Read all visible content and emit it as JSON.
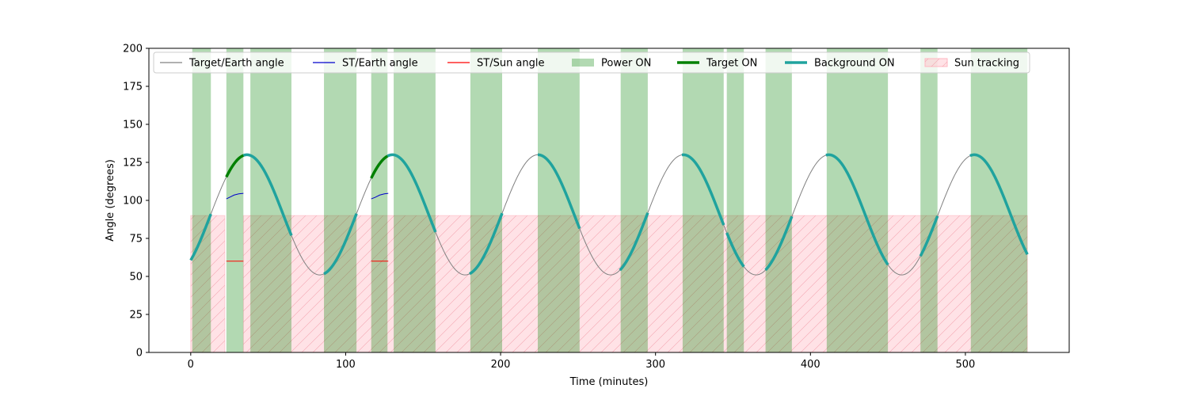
{
  "chart_data": {
    "type": "line",
    "title": "",
    "xlabel": "Time (minutes)",
    "ylabel": "Angle (degrees)",
    "xlim": [
      -27,
      567
    ],
    "ylim": [
      0,
      200
    ],
    "xticks": [
      0,
      100,
      200,
      300,
      400,
      500
    ],
    "yticks": [
      0,
      25,
      50,
      75,
      100,
      125,
      150,
      175,
      200
    ],
    "grid": false,
    "legend_position": "top",
    "target_earth_model": {
      "mean": 90.5,
      "amplitude": 39.5,
      "period_min": 93.9,
      "phase_min": 12.8
    },
    "series": [
      {
        "name": "Target/Earth angle",
        "color": "#808080",
        "style": "thin-line",
        "range": [
          0,
          540
        ]
      },
      {
        "name": "ST/Earth angle",
        "color": "#0000cc",
        "style": "thin-line",
        "segments": [
          [
            [
              23,
              101
            ],
            [
              25,
              102
            ],
            [
              28,
              103.5
            ],
            [
              31,
              104.3
            ],
            [
              34,
              104.6
            ]
          ],
          [
            [
              116.5,
              101
            ],
            [
              119,
              102
            ],
            [
              122,
              103.5
            ],
            [
              125,
              104.3
            ],
            [
              127.5,
              104.6
            ]
          ]
        ]
      },
      {
        "name": "ST/Sun angle",
        "color": "#ff0000",
        "style": "thin-line",
        "segments": [
          [
            [
              23,
              60
            ],
            [
              34,
              60
            ]
          ],
          [
            [
              116.5,
              60
            ],
            [
              127.5,
              60
            ]
          ]
        ]
      },
      {
        "name": "Power ON",
        "color": "#008000",
        "style": "span",
        "y_range": [
          0,
          200
        ],
        "intervals": [
          [
            1,
            13
          ],
          [
            23,
            34
          ],
          [
            38.5,
            65
          ],
          [
            86,
            107
          ],
          [
            116.5,
            127
          ],
          [
            131,
            158
          ],
          [
            180.5,
            201
          ],
          [
            224,
            251
          ],
          [
            277.5,
            295
          ],
          [
            317.5,
            344
          ],
          [
            346,
            357
          ],
          [
            371,
            388
          ],
          [
            410.5,
            450
          ],
          [
            471,
            482
          ],
          [
            503.5,
            540
          ]
        ]
      },
      {
        "name": "Target ON",
        "color": "#008000",
        "style": "thick-line",
        "intervals": [
          [
            23,
            34
          ],
          [
            116.5,
            127
          ]
        ]
      },
      {
        "name": "Background ON",
        "color": "#20a39e",
        "style": "thick-line",
        "intervals": [
          [
            0,
            13
          ],
          [
            34,
            65
          ],
          [
            86,
            107
          ],
          [
            127,
            158
          ],
          [
            180,
            201
          ],
          [
            224,
            251
          ],
          [
            277,
            295
          ],
          [
            317,
            344
          ],
          [
            346,
            357
          ],
          [
            371,
            388
          ],
          [
            410,
            450
          ],
          [
            471,
            482
          ],
          [
            503,
            540
          ]
        ]
      },
      {
        "name": "Sun tracking",
        "color": "#ffb6c1",
        "style": "hatched-span",
        "y_range": [
          0,
          90
        ],
        "intervals": [
          [
            0,
            22
          ],
          [
            34,
            540
          ]
        ]
      }
    ]
  }
}
